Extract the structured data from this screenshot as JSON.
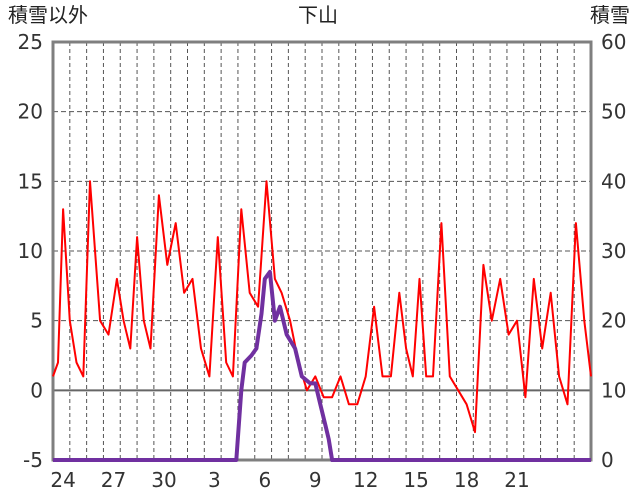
{
  "chart_data": {
    "type": "line",
    "title": "下山",
    "left_axis_label": "積雪以外",
    "right_axis_label": "積雪",
    "left_ticks": [
      "25",
      "20",
      "15",
      "10",
      "5",
      "0",
      "-5"
    ],
    "right_ticks": [
      "60",
      "50",
      "40",
      "30",
      "20",
      "10",
      "0"
    ],
    "x_ticks": [
      "24",
      "27",
      "30",
      "3",
      "6",
      "9",
      "12",
      "15",
      "18",
      "21"
    ],
    "left_ylim": [
      -5,
      25
    ],
    "right_ylim": [
      0,
      60
    ],
    "grid": true,
    "series": [
      {
        "axis": "left",
        "color": "#ff0000",
        "x": [
          0,
          0.3,
          0.6,
          1.0,
          1.4,
          1.8,
          2.2,
          2.8,
          3.3,
          3.8,
          4.2,
          4.6,
          5.0,
          5.4,
          5.8,
          6.3,
          6.8,
          7.3,
          7.8,
          8.3,
          8.8,
          9.3,
          9.8,
          10.3,
          10.7,
          11.2,
          11.7,
          12.2,
          12.7,
          13.2,
          13.6,
          14.1,
          14.6,
          15.1,
          15.6,
          16.1,
          16.6,
          17.1,
          17.6,
          18.1,
          18.6,
          19.1,
          19.6,
          20.1,
          20.6,
          21.0,
          21.4,
          21.8,
          22.2,
          22.6,
          23.1,
          23.6,
          24.1,
          24.6,
          25.1,
          25.6,
          26.1,
          26.6,
          27.1,
          27.6,
          28.1,
          28.6,
          29.1,
          29.6,
          30.1,
          30.6,
          31.1,
          31.6,
          32.0
        ],
        "y": [
          1,
          2,
          13,
          5,
          2,
          1,
          15,
          5,
          4,
          8,
          5,
          3,
          11,
          5,
          3,
          14,
          9,
          12,
          7,
          8,
          3,
          1,
          11,
          2,
          1,
          13,
          7,
          6,
          15,
          8,
          7,
          5,
          2,
          0,
          1,
          -0.5,
          -0.5,
          1,
          -1,
          -1,
          1,
          6,
          1,
          1,
          7,
          3,
          1,
          8,
          1,
          1,
          12,
          1,
          0,
          -1,
          -3,
          9,
          5,
          8,
          4,
          5,
          -0.5,
          8,
          3,
          7,
          1,
          -1,
          12,
          5,
          1
        ]
      },
      {
        "axis": "right",
        "color": "#7030a0",
        "x": [
          0,
          10.9,
          11.2,
          11.4,
          11.8,
          12.1,
          12.4,
          12.6,
          12.9,
          13.2,
          13.5,
          13.9,
          14.4,
          14.8,
          15.3,
          15.6,
          15.9,
          16.2,
          16.4,
          16.6,
          32.0
        ],
        "y": [
          0,
          0,
          10,
          14,
          15,
          16,
          21,
          26,
          27,
          20,
          22,
          18,
          16,
          12,
          11,
          11,
          8,
          5,
          3,
          0,
          0
        ]
      }
    ]
  }
}
